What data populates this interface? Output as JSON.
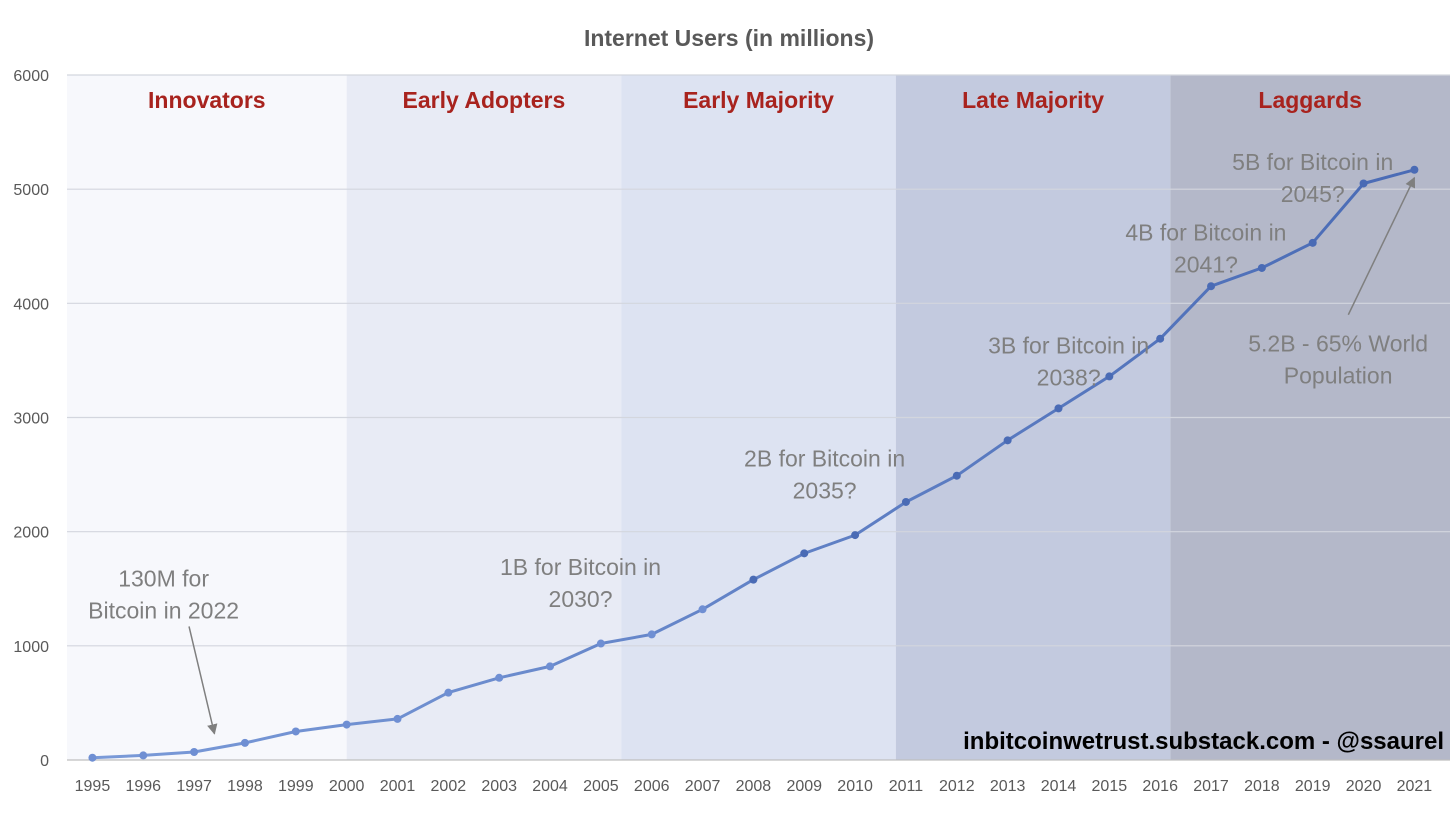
{
  "chart_data": {
    "type": "line",
    "title": "Internet Users (in millions)",
    "xlabel": "",
    "ylabel": "",
    "x": [
      1995,
      1996,
      1997,
      1998,
      1999,
      2000,
      2001,
      2002,
      2003,
      2004,
      2005,
      2006,
      2007,
      2008,
      2009,
      2010,
      2011,
      2012,
      2013,
      2014,
      2015,
      2016,
      2017,
      2018,
      2019,
      2020,
      2021
    ],
    "series": [
      {
        "values": [
          20,
          40,
          70,
          150,
          250,
          310,
          360,
          590,
          720,
          820,
          1020,
          1100,
          1320,
          1580,
          1810,
          1970,
          2260,
          2490,
          2800,
          3080,
          3360,
          3690,
          4150,
          4310,
          4530,
          5050,
          5170
        ]
      }
    ],
    "ylim": [
      0,
      6000
    ],
    "yticks": [
      0,
      1000,
      2000,
      3000,
      4000,
      5000,
      6000
    ],
    "grid": true,
    "line_color": "#4a6bb5",
    "phases": [
      {
        "label": "Innovators",
        "from": 1994.5,
        "to": 2000,
        "fill": "#f7f8fc"
      },
      {
        "label": "Early Adopters",
        "from": 2000,
        "to": 2005.4,
        "fill": "#e8ebf5"
      },
      {
        "label": "Early Majority",
        "from": 2005.4,
        "to": 2010.8,
        "fill": "#dde3f2"
      },
      {
        "label": "Late Majority",
        "from": 2010.8,
        "to": 2016.2,
        "fill": "#c3cadf"
      },
      {
        "label": "Laggards",
        "from": 2016.2,
        "to": 2021.7,
        "fill": "#b4b8c9"
      }
    ],
    "phase_label_color": "#a8231e",
    "annotations": [
      {
        "lines": [
          "130M for",
          "Bitcoin in 2022"
        ],
        "x": 1997.4,
        "y": 1520,
        "arrow_to": [
          1997.4,
          230
        ],
        "arrow_from": [
          1996.9,
          1170
        ]
      },
      {
        "lines": [
          "1B for Bitcoin in",
          "2030?"
        ],
        "x": 2004.6,
        "y": 1620
      },
      {
        "lines": [
          "2B for Bitcoin in",
          "2035?"
        ],
        "x": 2009.4,
        "y": 2570
      },
      {
        "lines": [
          "3B for Bitcoin in",
          "2038?"
        ],
        "x": 2014.2,
        "y": 3560
      },
      {
        "lines": [
          "4B for Bitcoin in",
          "2041?"
        ],
        "x": 2016.9,
        "y": 4550
      },
      {
        "lines": [
          "5B for Bitcoin in",
          "2045?"
        ],
        "x": 2019.0,
        "y": 5170
      },
      {
        "lines": [
          "5.2B - 65% World",
          "Population"
        ],
        "x": 2019.5,
        "y": 3580,
        "arrow_to": [
          2021,
          5100
        ],
        "arrow_from": [
          2019.7,
          3900
        ]
      }
    ],
    "credit": "inbitcoinwetrust.substack.com - @ssaurel"
  }
}
